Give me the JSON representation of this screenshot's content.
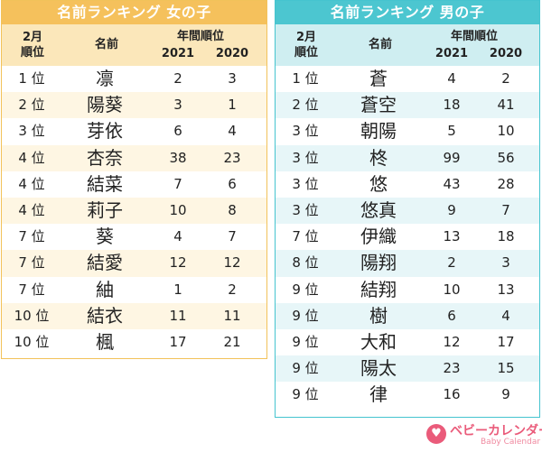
{
  "girls": {
    "title": "名前ランキング 女の子",
    "header": {
      "month_line1": "2月",
      "month_line2": "順位",
      "name": "名前",
      "annual": "年間順位",
      "year1": "2021",
      "year2": "2020"
    },
    "rows": [
      {
        "rank": "1 位",
        "name": "凛",
        "y2021": "2",
        "y2020": "3"
      },
      {
        "rank": "2 位",
        "name": "陽葵",
        "y2021": "3",
        "y2020": "1"
      },
      {
        "rank": "3 位",
        "name": "芽依",
        "y2021": "6",
        "y2020": "4"
      },
      {
        "rank": "4 位",
        "name": "杏奈",
        "y2021": "38",
        "y2020": "23"
      },
      {
        "rank": "4 位",
        "name": "結菜",
        "y2021": "7",
        "y2020": "6"
      },
      {
        "rank": "4 位",
        "name": "莉子",
        "y2021": "10",
        "y2020": "8"
      },
      {
        "rank": "7 位",
        "name": "葵",
        "y2021": "4",
        "y2020": "7"
      },
      {
        "rank": "7 位",
        "name": "結愛",
        "y2021": "12",
        "y2020": "12"
      },
      {
        "rank": "7 位",
        "name": "紬",
        "y2021": "1",
        "y2020": "2"
      },
      {
        "rank": "10 位",
        "name": "結衣",
        "y2021": "11",
        "y2020": "11"
      },
      {
        "rank": "10 位",
        "name": "楓",
        "y2021": "17",
        "y2020": "21"
      }
    ]
  },
  "boys": {
    "title": "名前ランキング 男の子",
    "header": {
      "month_line1": "2月",
      "month_line2": "順位",
      "name": "名前",
      "annual": "年間順位",
      "year1": "2021",
      "year2": "2020"
    },
    "rows": [
      {
        "rank": "1 位",
        "name": "蒼",
        "y2021": "4",
        "y2020": "2"
      },
      {
        "rank": "2 位",
        "name": "蒼空",
        "y2021": "18",
        "y2020": "41"
      },
      {
        "rank": "3 位",
        "name": "朝陽",
        "y2021": "5",
        "y2020": "10"
      },
      {
        "rank": "3 位",
        "name": "柊",
        "y2021": "99",
        "y2020": "56"
      },
      {
        "rank": "3 位",
        "name": "悠",
        "y2021": "43",
        "y2020": "28"
      },
      {
        "rank": "3 位",
        "name": "悠真",
        "y2021": "9",
        "y2020": "7"
      },
      {
        "rank": "7 位",
        "name": "伊織",
        "y2021": "13",
        "y2020": "18"
      },
      {
        "rank": "8 位",
        "name": "陽翔",
        "y2021": "2",
        "y2020": "3"
      },
      {
        "rank": "9 位",
        "name": "結翔",
        "y2021": "10",
        "y2020": "13"
      },
      {
        "rank": "9 位",
        "name": "樹",
        "y2021": "6",
        "y2020": "4"
      },
      {
        "rank": "9 位",
        "name": "大和",
        "y2021": "12",
        "y2020": "17"
      },
      {
        "rank": "9 位",
        "name": "陽太",
        "y2021": "23",
        "y2020": "15"
      },
      {
        "rank": "9 位",
        "name": "律",
        "y2021": "16",
        "y2020": "9"
      }
    ]
  },
  "logo": {
    "text_jp": "ベビーカレンダー",
    "text_en": "Baby Calendar",
    "icon": "baby-calendar-logo-icon"
  },
  "colors": {
    "girls_accent": "#f5c15c",
    "boys_accent": "#4cc6d0",
    "logo": "#ea5b7a"
  }
}
